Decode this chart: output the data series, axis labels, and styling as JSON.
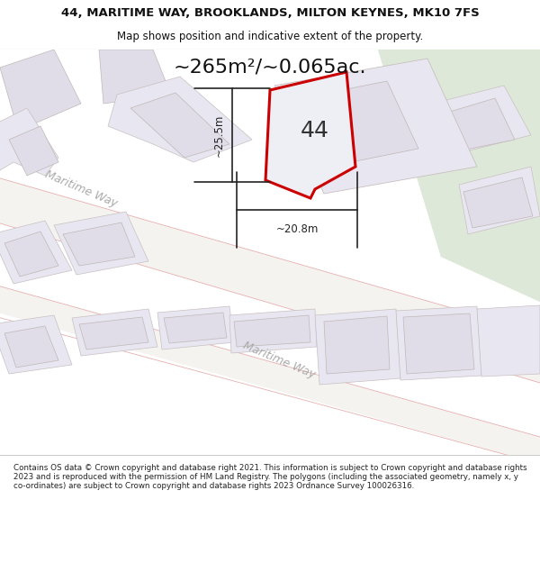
{
  "title_line1": "44, MARITIME WAY, BROOKLANDS, MILTON KEYNES, MK10 7FS",
  "title_line2": "Map shows position and indicative extent of the property.",
  "area_label": "~265m²/~0.065ac.",
  "property_number": "44",
  "dim_vertical": "~25.5m",
  "dim_horizontal": "~20.8m",
  "road_label_left": "Maritime Way",
  "road_label_bottom": "Maritime Way",
  "footer_text": "Contains OS data © Crown copyright and database right 2021. This information is subject to Crown copyright and database rights 2023 and is reproduced with the permission of HM Land Registry. The polygons (including the associated geometry, namely x, y co-ordinates) are subject to Crown copyright and database rights 2023 Ordnance Survey 100026316.",
  "bg_color_main": "#eeece8",
  "bg_color_green": "#dde8d8",
  "road_color": "#f5f3f0",
  "road_edge": "#e8b0b0",
  "plot_fill": "#e8e6f0",
  "plot_edge": "#c8c0c0",
  "building_fill": "#e0dde8",
  "building_edge": "#c0b8b8",
  "property_fill": "#eeeef5",
  "property_edge": "#cc0000",
  "dim_color": "#222222",
  "road_text_color": "#aaaaaa",
  "top_bg": "#ffffff",
  "bottom_bg": "#ffffff",
  "border_color": "#cccccc",
  "title_fontsize": 9.5,
  "subtitle_fontsize": 8.5,
  "area_fontsize": 16,
  "number_fontsize": 18,
  "road_fontsize": 9,
  "dim_fontsize": 8.5,
  "footer_fontsize": 6.3
}
